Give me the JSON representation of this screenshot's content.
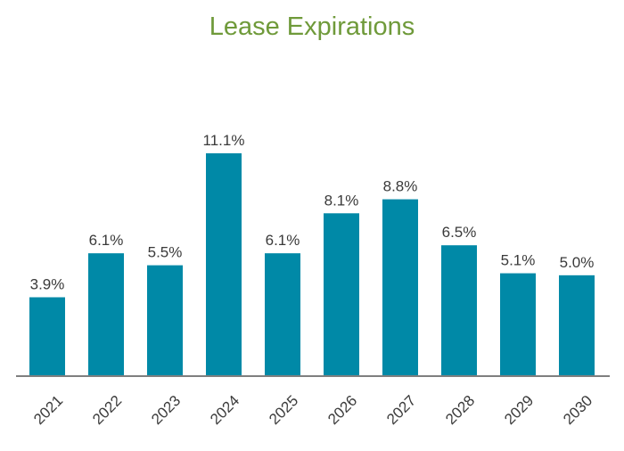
{
  "colors": {
    "title": "#6f9a3a",
    "bar": "#0089a7",
    "axis": "#555555"
  },
  "chart_data": {
    "type": "bar",
    "title": "Lease Expirations",
    "xlabel": "",
    "ylabel": "",
    "categories": [
      "2021",
      "2022",
      "2023",
      "2024",
      "2025",
      "2026",
      "2027",
      "2028",
      "2029",
      "2030"
    ],
    "values": [
      3.9,
      6.1,
      5.5,
      11.1,
      6.1,
      8.1,
      8.8,
      6.5,
      5.1,
      5.0
    ],
    "data_labels": [
      "3.9%",
      "6.1%",
      "5.5%",
      "11.1%",
      "6.1%",
      "8.1%",
      "8.8%",
      "6.5%",
      "5.1%",
      "5.0%"
    ],
    "ylim": [
      0,
      11.1
    ],
    "grid": false,
    "legend": "none"
  }
}
